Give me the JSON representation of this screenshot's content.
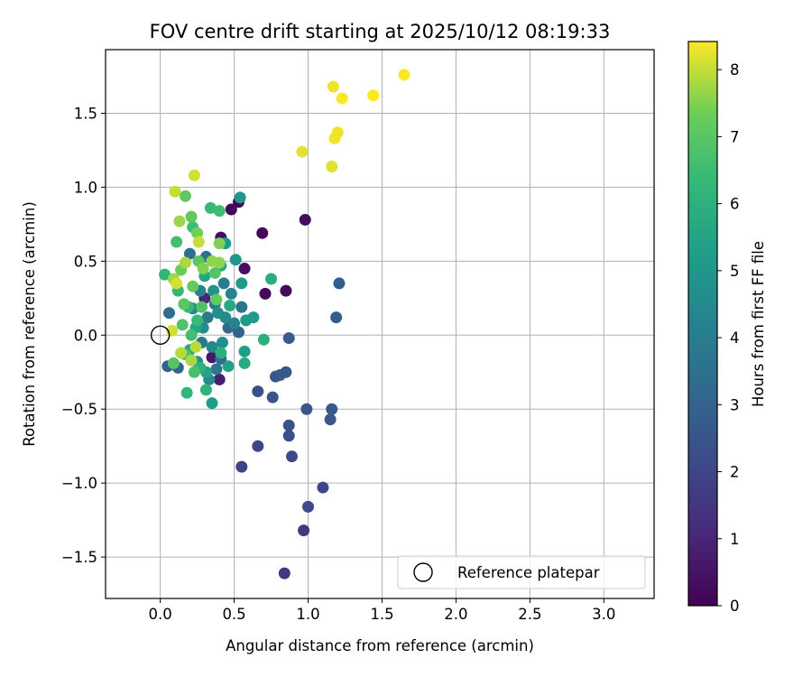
{
  "chart_data": {
    "type": "scatter",
    "title": "FOV centre drift starting at 2025/10/12 08:19:33",
    "xlabel": "Angular distance from reference (arcmin)",
    "ylabel": "Rotation from reference (arcmin)",
    "xlim": [
      -0.37,
      3.34
    ],
    "ylim": [
      -1.78,
      1.93
    ],
    "xticks": [
      0.0,
      0.5,
      1.0,
      1.5,
      2.0,
      2.5,
      3.0
    ],
    "xtick_labels": [
      "0.0",
      "0.5",
      "1.0",
      "1.5",
      "2.0",
      "2.5",
      "3.0"
    ],
    "yticks": [
      -1.5,
      -1.0,
      -0.5,
      0.0,
      0.5,
      1.0,
      1.5
    ],
    "ytick_labels": [
      "−1.5",
      "−1.0",
      "−0.5",
      "0.0",
      "0.5",
      "1.0",
      "1.5"
    ],
    "grid": true,
    "legend": {
      "position": "lower-right",
      "entries": [
        "Reference platepar"
      ]
    },
    "reference_point": {
      "x": 0.0,
      "y": 0.0
    },
    "colorbar": {
      "label": "Hours from first FF file",
      "min": 0,
      "max": 8.42,
      "ticks": [
        0,
        1,
        2,
        3,
        4,
        5,
        6,
        7,
        8
      ],
      "tick_labels": [
        "0",
        "1",
        "2",
        "3",
        "4",
        "5",
        "6",
        "7",
        "8"
      ]
    },
    "points": [
      {
        "x": 0.41,
        "y": 0.66,
        "h": 0.3
      },
      {
        "x": 0.48,
        "y": 0.85,
        "h": 0.2
      },
      {
        "x": 0.53,
        "y": 0.9,
        "h": 0.1
      },
      {
        "x": 0.69,
        "y": 0.69,
        "h": 0.2
      },
      {
        "x": 0.98,
        "y": 0.78,
        "h": 0.3
      },
      {
        "x": 0.57,
        "y": 0.45,
        "h": 0.4
      },
      {
        "x": 0.71,
        "y": 0.28,
        "h": 0.3
      },
      {
        "x": 0.85,
        "y": 0.3,
        "h": 0.2
      },
      {
        "x": 0.35,
        "y": -0.15,
        "h": 0.6
      },
      {
        "x": 0.4,
        "y": -0.3,
        "h": 0.8
      },
      {
        "x": 0.3,
        "y": 0.25,
        "h": 1.0
      },
      {
        "x": 0.84,
        "y": -1.61,
        "h": 1.5
      },
      {
        "x": 0.97,
        "y": -1.32,
        "h": 1.6
      },
      {
        "x": 0.55,
        "y": -0.89,
        "h": 1.9
      },
      {
        "x": 1.0,
        "y": -1.16,
        "h": 2.2
      },
      {
        "x": 1.1,
        "y": -1.03,
        "h": 2.0
      },
      {
        "x": 0.66,
        "y": -0.75,
        "h": 2.0
      },
      {
        "x": 0.89,
        "y": -0.82,
        "h": 2.1
      },
      {
        "x": 0.87,
        "y": -0.68,
        "h": 2.3
      },
      {
        "x": 0.87,
        "y": -0.61,
        "h": 2.4
      },
      {
        "x": 0.99,
        "y": -0.5,
        "h": 2.5
      },
      {
        "x": 1.15,
        "y": -0.57,
        "h": 2.6
      },
      {
        "x": 1.16,
        "y": -0.5,
        "h": 2.6
      },
      {
        "x": 0.66,
        "y": -0.38,
        "h": 2.4
      },
      {
        "x": 0.76,
        "y": -0.42,
        "h": 2.5
      },
      {
        "x": 0.78,
        "y": -0.28,
        "h": 2.6
      },
      {
        "x": 0.81,
        "y": -0.27,
        "h": 2.7
      },
      {
        "x": 0.85,
        "y": -0.25,
        "h": 2.6
      },
      {
        "x": 0.87,
        "y": -0.02,
        "h": 2.7
      },
      {
        "x": 1.19,
        "y": 0.12,
        "h": 2.8
      },
      {
        "x": 1.21,
        "y": 0.35,
        "h": 2.8
      },
      {
        "x": 0.05,
        "y": -0.21,
        "h": 2.9
      },
      {
        "x": 0.12,
        "y": -0.22,
        "h": 3.1
      },
      {
        "x": 0.06,
        "y": 0.15,
        "h": 3.3
      },
      {
        "x": 0.53,
        "y": 0.02,
        "h": 3.0
      },
      {
        "x": 0.46,
        "y": 0.05,
        "h": 3.2
      },
      {
        "x": 0.2,
        "y": 0.55,
        "h": 3.4
      },
      {
        "x": 0.31,
        "y": 0.53,
        "h": 3.5
      },
      {
        "x": 0.55,
        "y": 0.19,
        "h": 3.6
      },
      {
        "x": 0.41,
        "y": -0.16,
        "h": 3.4
      },
      {
        "x": 0.38,
        "y": -0.23,
        "h": 3.7
      },
      {
        "x": 0.28,
        "y": -0.05,
        "h": 3.8
      },
      {
        "x": 0.32,
        "y": 0.12,
        "h": 3.9
      },
      {
        "x": 0.37,
        "y": 0.21,
        "h": 4.0
      },
      {
        "x": 0.43,
        "y": 0.35,
        "h": 4.1
      },
      {
        "x": 0.48,
        "y": 0.28,
        "h": 4.2
      },
      {
        "x": 0.5,
        "y": 0.08,
        "h": 4.3
      },
      {
        "x": 0.27,
        "y": 0.3,
        "h": 4.3
      },
      {
        "x": 0.22,
        "y": 0.18,
        "h": 4.4
      },
      {
        "x": 0.35,
        "y": -0.08,
        "h": 4.4
      },
      {
        "x": 0.44,
        "y": 0.12,
        "h": 4.5
      },
      {
        "x": 0.33,
        "y": -0.3,
        "h": 4.5
      },
      {
        "x": 0.25,
        "y": -0.18,
        "h": 4.6
      },
      {
        "x": 0.29,
        "y": 0.05,
        "h": 4.6
      },
      {
        "x": 0.39,
        "y": 0.15,
        "h": 4.7
      },
      {
        "x": 0.42,
        "y": -0.05,
        "h": 4.7
      },
      {
        "x": 0.36,
        "y": 0.3,
        "h": 4.8
      },
      {
        "x": 0.51,
        "y": 0.51,
        "h": 4.9
      },
      {
        "x": 0.54,
        "y": 0.93,
        "h": 5.0
      },
      {
        "x": 0.44,
        "y": 0.62,
        "h": 5.1
      },
      {
        "x": 0.55,
        "y": 0.35,
        "h": 5.2
      },
      {
        "x": 0.58,
        "y": 0.1,
        "h": 5.2
      },
      {
        "x": 0.63,
        "y": 0.12,
        "h": 5.1
      },
      {
        "x": 0.57,
        "y": -0.11,
        "h": 5.3
      },
      {
        "x": 0.46,
        "y": -0.21,
        "h": 5.4
      },
      {
        "x": 0.35,
        "y": -0.46,
        "h": 5.3
      },
      {
        "x": 0.31,
        "y": -0.25,
        "h": 5.5
      },
      {
        "x": 0.2,
        "y": -0.1,
        "h": 5.5
      },
      {
        "x": 0.24,
        "y": 0.05,
        "h": 5.6
      },
      {
        "x": 0.3,
        "y": 0.4,
        "h": 5.6
      },
      {
        "x": 0.41,
        "y": 0.47,
        "h": 5.7
      },
      {
        "x": 0.47,
        "y": 0.2,
        "h": 5.7
      },
      {
        "x": 0.57,
        "y": -0.19,
        "h": 5.8
      },
      {
        "x": 0.75,
        "y": 0.38,
        "h": 5.9
      },
      {
        "x": 0.7,
        "y": -0.03,
        "h": 6.0
      },
      {
        "x": 0.41,
        "y": -0.12,
        "h": 6.0
      },
      {
        "x": 0.27,
        "y": -0.22,
        "h": 6.1
      },
      {
        "x": 0.31,
        "y": -0.37,
        "h": 6.1
      },
      {
        "x": 0.18,
        "y": -0.39,
        "h": 6.2
      },
      {
        "x": 0.03,
        "y": 0.41,
        "h": 6.2
      },
      {
        "x": 0.12,
        "y": 0.3,
        "h": 6.3
      },
      {
        "x": 0.19,
        "y": 0.19,
        "h": 6.3
      },
      {
        "x": 0.25,
        "y": 0.1,
        "h": 6.4
      },
      {
        "x": 0.34,
        "y": 0.86,
        "h": 6.4
      },
      {
        "x": 0.4,
        "y": 0.84,
        "h": 6.5
      },
      {
        "x": 0.22,
        "y": 0.73,
        "h": 6.5
      },
      {
        "x": 0.11,
        "y": 0.63,
        "h": 6.6
      },
      {
        "x": 0.21,
        "y": 0.0,
        "h": 6.6
      },
      {
        "x": 0.17,
        "y": -0.13,
        "h": 6.7
      },
      {
        "x": 0.23,
        "y": -0.25,
        "h": 6.7
      },
      {
        "x": 0.15,
        "y": 0.07,
        "h": 6.8
      },
      {
        "x": 0.28,
        "y": 0.19,
        "h": 6.8
      },
      {
        "x": 0.37,
        "y": 0.42,
        "h": 6.9
      },
      {
        "x": 0.09,
        "y": -0.19,
        "h": 6.9
      },
      {
        "x": 0.16,
        "y": 0.21,
        "h": 7.0
      },
      {
        "x": 0.26,
        "y": 0.5,
        "h": 7.0
      },
      {
        "x": 0.17,
        "y": 0.94,
        "h": 7.1
      },
      {
        "x": 0.21,
        "y": 0.8,
        "h": 7.1
      },
      {
        "x": 0.38,
        "y": 0.24,
        "h": 7.2
      },
      {
        "x": 0.22,
        "y": 0.33,
        "h": 7.2
      },
      {
        "x": 0.14,
        "y": 0.44,
        "h": 7.3
      },
      {
        "x": 0.25,
        "y": 0.69,
        "h": 7.4
      },
      {
        "x": 0.4,
        "y": 0.62,
        "h": 7.5
      },
      {
        "x": 0.29,
        "y": 0.45,
        "h": 7.5
      },
      {
        "x": 0.35,
        "y": 0.5,
        "h": 7.6
      },
      {
        "x": 0.4,
        "y": 0.49,
        "h": 7.6
      },
      {
        "x": 0.13,
        "y": 0.77,
        "h": 7.7
      },
      {
        "x": 0.09,
        "y": 0.38,
        "h": 7.7
      },
      {
        "x": 0.17,
        "y": 0.49,
        "h": 7.8
      },
      {
        "x": 0.21,
        "y": -0.17,
        "h": 7.8
      },
      {
        "x": 0.24,
        "y": -0.08,
        "h": 7.9
      },
      {
        "x": 0.14,
        "y": -0.12,
        "h": 7.9
      },
      {
        "x": 0.26,
        "y": 0.63,
        "h": 8.0
      },
      {
        "x": 0.1,
        "y": 0.97,
        "h": 8.0
      },
      {
        "x": 0.23,
        "y": 1.08,
        "h": 8.1
      },
      {
        "x": 0.08,
        "y": 0.03,
        "h": 8.1
      },
      {
        "x": 0.11,
        "y": 0.35,
        "h": 8.1
      },
      {
        "x": 0.96,
        "y": 1.24,
        "h": 8.2
      },
      {
        "x": 1.16,
        "y": 1.14,
        "h": 8.2
      },
      {
        "x": 1.18,
        "y": 1.33,
        "h": 8.3
      },
      {
        "x": 1.2,
        "y": 1.37,
        "h": 8.3
      },
      {
        "x": 1.17,
        "y": 1.68,
        "h": 8.3
      },
      {
        "x": 1.23,
        "y": 1.6,
        "h": 8.4
      },
      {
        "x": 1.44,
        "y": 1.62,
        "h": 8.4
      },
      {
        "x": 1.65,
        "y": 1.76,
        "h": 8.4
      }
    ]
  }
}
